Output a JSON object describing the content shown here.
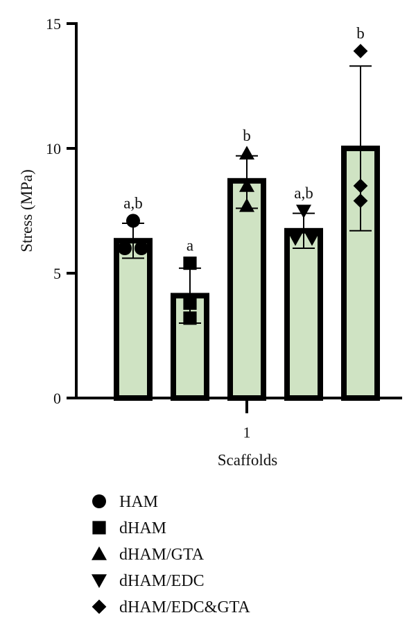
{
  "chart_data": {
    "type": "bar",
    "xlabel": "Scaffolds",
    "ylabel": "Stress (MPa)",
    "x_tick_label": "1",
    "ylim": [
      0,
      15
    ],
    "yticks": [
      0,
      5,
      10,
      15
    ],
    "grid": false,
    "legend_position": "bottom",
    "bar_fill_color": "#cfe3c3",
    "bar_edge_color": "#000000",
    "series": [
      {
        "name": "HAM",
        "marker": "circle",
        "value": 6.3,
        "error": [
          5.6,
          7.0
        ],
        "points": [
          6.0,
          6.0,
          7.1
        ],
        "significance": "a,b"
      },
      {
        "name": "dHAM",
        "marker": "square",
        "value": 4.1,
        "error": [
          3.0,
          5.2
        ],
        "points": [
          3.2,
          3.8,
          5.4
        ],
        "significance": "a"
      },
      {
        "name": "dHAM/GTA",
        "marker": "triangle-up",
        "value": 8.7,
        "error": [
          7.6,
          9.7
        ],
        "points": [
          7.7,
          8.5,
          9.8
        ],
        "significance": "b"
      },
      {
        "name": "dHAM/EDC",
        "marker": "triangle-down",
        "value": 6.7,
        "error": [
          6.0,
          7.4
        ],
        "points": [
          6.4,
          6.4,
          7.5
        ],
        "significance": "a,b"
      },
      {
        "name": "dHAM/EDC&GTA",
        "marker": "diamond",
        "value": 10.0,
        "error": [
          6.7,
          13.3
        ],
        "points": [
          7.9,
          8.5,
          13.9
        ],
        "significance": "b"
      }
    ]
  }
}
